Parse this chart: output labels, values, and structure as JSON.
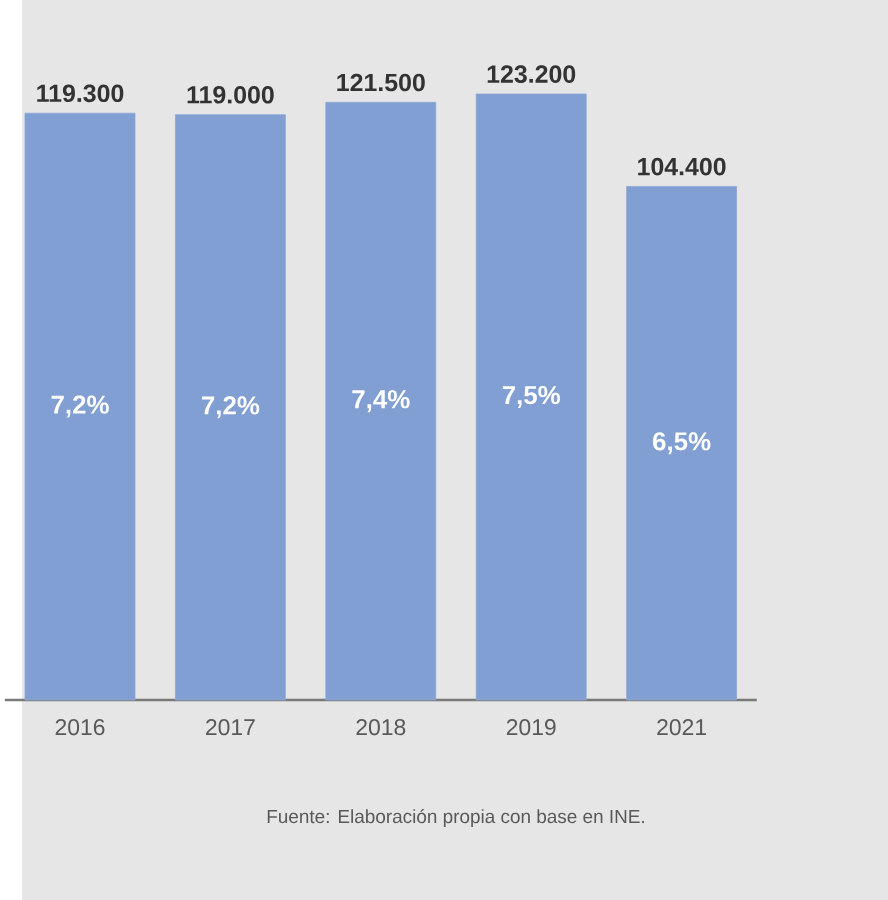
{
  "chart_data": {
    "type": "bar",
    "categories": [
      "2016",
      "2017",
      "2018",
      "2019",
      "2021"
    ],
    "values": [
      119300,
      119000,
      121500,
      123200,
      104400
    ],
    "value_labels": [
      "119.300",
      "119.000",
      "121.500",
      "123.200",
      "104.400"
    ],
    "color": "#819fd2",
    "annotations": [
      "7,2%",
      "7,2%",
      "7,4%",
      "7,5%",
      "6,5%",
      "Fuente: Elaboración propia con base en INE."
    ],
    "grid": false
  }
}
